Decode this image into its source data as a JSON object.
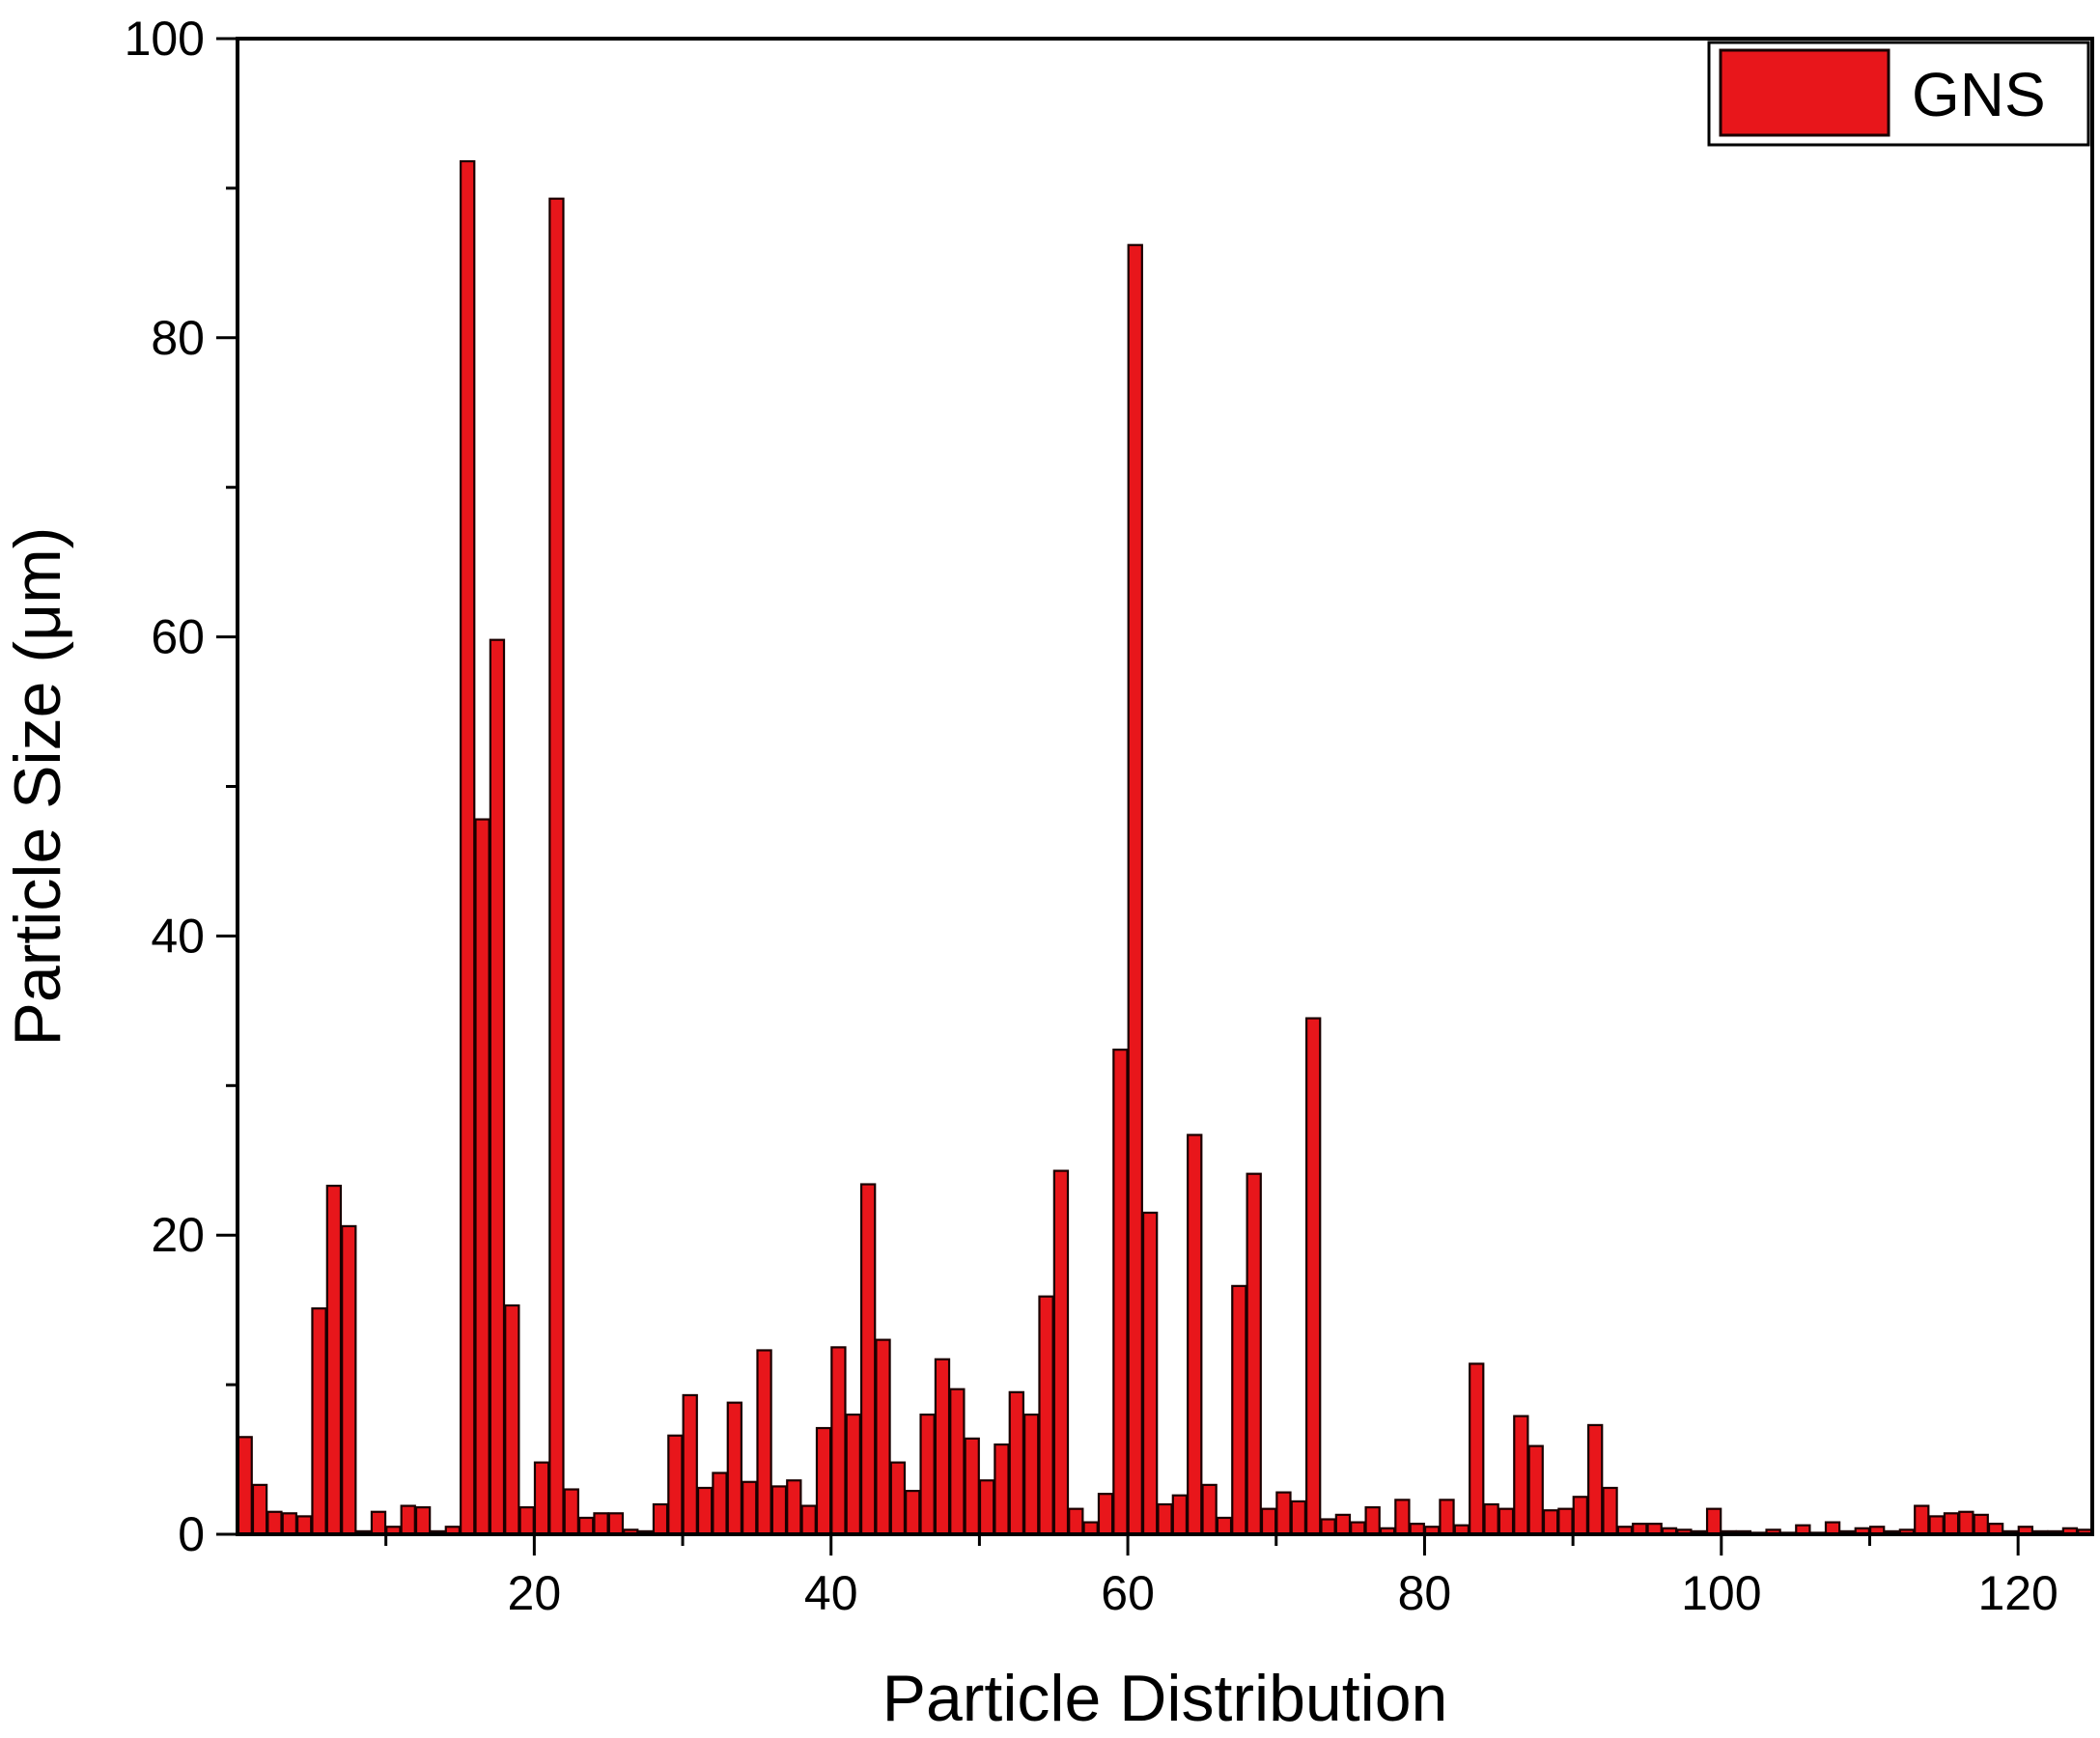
{
  "chart_data": {
    "type": "bar",
    "title": "",
    "xlabel": "Particle Distribution",
    "ylabel": "Particle Size (μm)",
    "xlim": [
      0,
      125
    ],
    "ylim": [
      0,
      100
    ],
    "x_ticks": [
      20,
      40,
      60,
      80,
      100,
      120
    ],
    "y_ticks": [
      0,
      20,
      40,
      60,
      80,
      100
    ],
    "legend": {
      "position": "top-right",
      "entries": [
        "GNS"
      ]
    },
    "grid": false,
    "colors": {
      "bar_fill": "#e8161b",
      "bar_edge": "#1a0000",
      "axis": "#000000"
    },
    "series": [
      {
        "name": "GNS",
        "x": [
          1,
          2,
          3,
          4,
          5,
          6,
          7,
          8,
          9,
          10,
          11,
          12,
          13,
          14,
          15,
          16,
          17,
          18,
          19,
          20,
          21,
          22,
          23,
          24,
          25,
          26,
          27,
          28,
          29,
          30,
          31,
          32,
          33,
          34,
          35,
          36,
          37,
          38,
          39,
          40,
          41,
          42,
          43,
          44,
          45,
          46,
          47,
          48,
          49,
          50,
          51,
          52,
          53,
          54,
          55,
          56,
          57,
          58,
          59,
          60,
          61,
          62,
          63,
          64,
          65,
          66,
          67,
          68,
          69,
          70,
          71,
          72,
          73,
          74,
          75,
          76,
          77,
          78,
          79,
          80,
          81,
          82,
          83,
          84,
          85,
          86,
          87,
          88,
          89,
          90,
          91,
          92,
          93,
          94,
          95,
          96,
          97,
          98,
          99,
          100,
          101,
          102,
          103,
          104,
          105,
          106,
          107,
          108,
          109,
          110,
          111,
          112,
          113,
          114,
          115,
          116,
          117,
          118,
          119,
          120,
          121,
          122,
          123,
          124,
          125
        ],
        "values": [
          6.5,
          3.3,
          1.5,
          1.4,
          1.2,
          15.1,
          23.3,
          20.6,
          0.2,
          1.5,
          0.5,
          1.9,
          1.8,
          0.2,
          0.5,
          91.8,
          47.8,
          59.8,
          15.3,
          1.8,
          4.8,
          89.3,
          3.0,
          1.1,
          1.4,
          1.4,
          0.3,
          0.2,
          2.0,
          6.6,
          9.3,
          3.1,
          4.1,
          8.8,
          3.5,
          12.3,
          3.2,
          3.6,
          1.9,
          7.1,
          12.5,
          8.0,
          23.4,
          13.0,
          4.8,
          2.9,
          8.0,
          11.7,
          9.7,
          6.4,
          3.6,
          6.0,
          9.5,
          8.0,
          15.9,
          24.3,
          1.7,
          0.8,
          2.7,
          32.4,
          86.2,
          21.5,
          2.0,
          2.6,
          26.7,
          3.3,
          1.1,
          16.6,
          24.1,
          1.7,
          2.8,
          2.2,
          34.5,
          1.0,
          1.3,
          0.8,
          1.8,
          0.4,
          2.3,
          0.7,
          0.5,
          2.3,
          0.6,
          11.4,
          2.0,
          1.7,
          7.9,
          5.9,
          1.6,
          1.7,
          2.5,
          7.3,
          3.1,
          0.5,
          0.7,
          0.7,
          0.4,
          0.3,
          0.2,
          1.7,
          0.2,
          0.2,
          0.1,
          0.3,
          0.1,
          0.6,
          0.1,
          0.8,
          0.2,
          0.4,
          0.5,
          0.2,
          0.3,
          1.9,
          1.2,
          1.4,
          1.5,
          1.3,
          0.7,
          0.2,
          0.5,
          0.2,
          0.2,
          0.4,
          0.3
        ]
      }
    ]
  }
}
